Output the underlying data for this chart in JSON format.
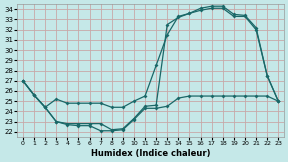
{
  "xlabel": "Humidex (Indice chaleur)",
  "xlim": [
    -0.5,
    23.5
  ],
  "ylim": [
    21.5,
    34.5
  ],
  "xticks": [
    0,
    1,
    2,
    3,
    4,
    5,
    6,
    7,
    8,
    9,
    10,
    11,
    12,
    13,
    14,
    15,
    16,
    17,
    18,
    19,
    20,
    21,
    22,
    23
  ],
  "yticks": [
    22,
    23,
    24,
    25,
    26,
    27,
    28,
    29,
    30,
    31,
    32,
    33,
    34
  ],
  "bg_color": "#c5e8e8",
  "grid_color": "#c8a8a8",
  "line_color": "#1a6868",
  "line1_x": [
    0,
    1,
    2,
    3,
    4,
    5,
    6,
    7,
    8,
    9,
    10,
    11,
    12,
    13,
    14,
    15,
    16,
    17,
    18,
    19,
    20,
    21,
    22,
    23
  ],
  "line1_y": [
    27.0,
    25.6,
    24.4,
    25.2,
    24.8,
    24.8,
    24.8,
    24.8,
    24.4,
    24.4,
    25.0,
    25.5,
    28.5,
    31.5,
    33.3,
    33.6,
    34.1,
    34.3,
    34.3,
    33.5,
    33.4,
    32.2,
    27.5,
    25.0
  ],
  "line2_x": [
    0,
    1,
    2,
    3,
    4,
    5,
    6,
    7,
    8,
    9,
    10,
    11,
    12,
    13,
    14,
    15,
    16,
    17,
    18,
    19,
    20,
    21,
    22,
    23
  ],
  "line2_y": [
    27.0,
    25.6,
    24.4,
    23.0,
    22.8,
    22.8,
    22.8,
    22.8,
    22.2,
    22.3,
    23.3,
    24.5,
    24.6,
    32.5,
    33.2,
    33.6,
    33.9,
    34.1,
    34.1,
    33.3,
    33.3,
    32.0,
    27.5,
    25.0
  ],
  "line3_x": [
    0,
    1,
    2,
    3,
    4,
    5,
    6,
    7,
    8,
    9,
    10,
    11,
    12,
    13,
    14,
    15,
    16,
    17,
    18,
    19,
    20,
    21,
    22,
    23
  ],
  "line3_y": [
    27.0,
    25.6,
    24.4,
    23.0,
    22.7,
    22.6,
    22.6,
    22.1,
    22.1,
    22.2,
    23.2,
    24.3,
    24.3,
    24.5,
    25.3,
    25.5,
    25.5,
    25.5,
    25.5,
    25.5,
    25.5,
    25.5,
    25.5,
    25.0
  ]
}
